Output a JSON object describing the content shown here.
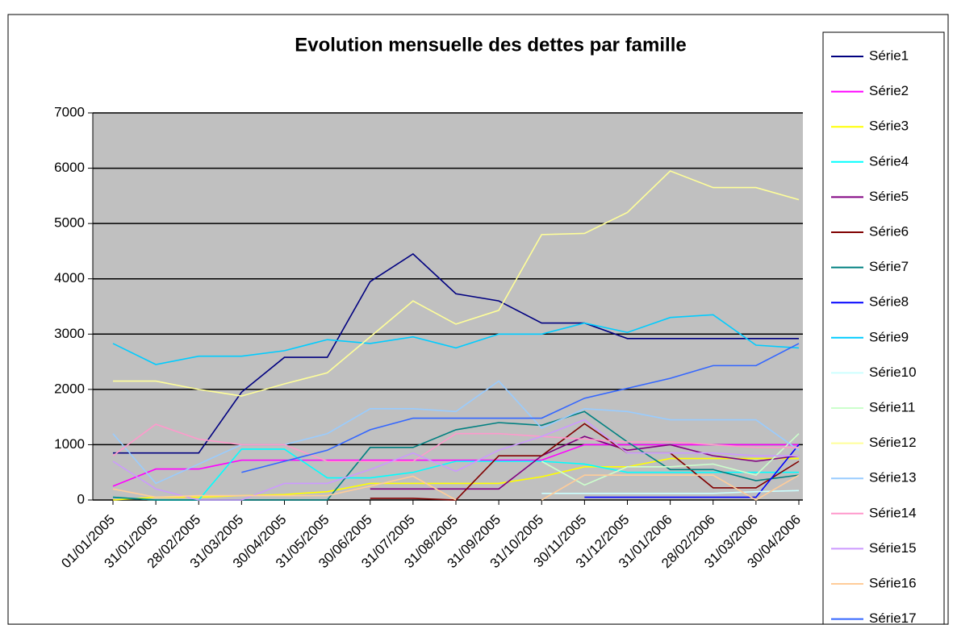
{
  "chart_data": {
    "type": "line",
    "title": "Evolution mensuelle des dettes par famille",
    "categories": [
      "01/01/2005",
      "31/01/2005",
      "28/02/2005",
      "31/03/2005",
      "30/04/2005",
      "31/05/2005",
      "30/06/2005",
      "31/07/2005",
      "31/08/2005",
      "31/09/2005",
      "31/10/2005",
      "30/11/2005",
      "31/12/2005",
      "31/01/2006",
      "28/02/2006",
      "31/03/2006",
      "30/04/2006"
    ],
    "ylim": [
      0,
      7000
    ],
    "yticks": [
      0,
      1000,
      2000,
      3000,
      4000,
      5000,
      6000,
      7000
    ],
    "grid": true,
    "legend": "right",
    "series": [
      {
        "name": "Série1",
        "color": "#000080",
        "values": [
          850,
          850,
          850,
          1950,
          2580,
          2580,
          3950,
          4450,
          3730,
          3600,
          3200,
          3200,
          2920,
          2920,
          2920,
          2920,
          2920
        ]
      },
      {
        "name": "Série2",
        "color": "#ff00ff",
        "values": [
          250,
          560,
          560,
          720,
          720,
          720,
          720,
          720,
          720,
          720,
          720,
          1000,
          1000,
          1000,
          1000,
          1000,
          1000
        ]
      },
      {
        "name": "Série3",
        "color": "#ffff00",
        "values": [
          0,
          50,
          50,
          80,
          100,
          150,
          300,
          300,
          300,
          300,
          420,
          600,
          600,
          750,
          750,
          750,
          750
        ]
      },
      {
        "name": "Série4",
        "color": "#00ffff",
        "values": [
          50,
          0,
          0,
          920,
          920,
          400,
          400,
          500,
          700,
          700,
          700,
          650,
          500,
          500,
          500,
          500,
          500
        ]
      },
      {
        "name": "Série5",
        "color": "#800080",
        "values": [
          null,
          null,
          null,
          null,
          null,
          null,
          200,
          200,
          200,
          200,
          800,
          1150,
          900,
          1000,
          800,
          700,
          800
        ]
      },
      {
        "name": "Série6",
        "color": "#800000",
        "values": [
          null,
          null,
          null,
          null,
          null,
          null,
          30,
          30,
          0,
          800,
          800,
          1380,
          850,
          850,
          220,
          220,
          700
        ]
      },
      {
        "name": "Série7",
        "color": "#008080",
        "values": [
          50,
          0,
          0,
          0,
          0,
          0,
          950,
          950,
          1270,
          1400,
          1350,
          1600,
          1050,
          550,
          550,
          350,
          450
        ]
      },
      {
        "name": "Série8",
        "color": "#0000ff",
        "values": [
          null,
          null,
          null,
          null,
          null,
          null,
          null,
          null,
          null,
          null,
          null,
          50,
          50,
          50,
          50,
          50,
          1000
        ]
      },
      {
        "name": "Série9",
        "color": "#00ccff",
        "values": [
          2830,
          2450,
          2600,
          2600,
          2700,
          2900,
          2830,
          2950,
          2750,
          3000,
          3000,
          3200,
          3030,
          3300,
          3350,
          2800,
          2750
        ]
      },
      {
        "name": "Série10",
        "color": "#ccffff",
        "values": [
          null,
          null,
          null,
          null,
          null,
          null,
          null,
          null,
          null,
          null,
          120,
          120,
          120,
          120,
          120,
          150,
          170
        ]
      },
      {
        "name": "Série11",
        "color": "#ccffcc",
        "values": [
          null,
          null,
          null,
          null,
          null,
          null,
          null,
          null,
          null,
          null,
          700,
          270,
          600,
          600,
          650,
          450,
          1200
        ]
      },
      {
        "name": "Série12",
        "color": "#ffff99",
        "values": [
          2150,
          2150,
          2000,
          1880,
          2100,
          2300,
          2950,
          3600,
          3180,
          3430,
          4800,
          4820,
          5200,
          5950,
          5650,
          5650,
          5430
        ]
      },
      {
        "name": "Série13",
        "color": "#99ccff",
        "values": [
          1200,
          300,
          650,
          1000,
          1000,
          1200,
          1650,
          1650,
          1600,
          2150,
          1300,
          1650,
          1600,
          1450,
          1450,
          1450,
          900
        ]
      },
      {
        "name": "Série14",
        "color": "#ff99cc",
        "values": [
          800,
          1370,
          1100,
          1000,
          1000,
          700,
          700,
          700,
          1200,
          1200,
          1150,
          1100,
          1050,
          1050,
          1000,
          950,
          950
        ]
      },
      {
        "name": "Série15",
        "color": "#cc99ff",
        "values": [
          700,
          200,
          0,
          0,
          300,
          300,
          550,
          850,
          520,
          900,
          1150,
          1450,
          850,
          850,
          850,
          800,
          800
        ]
      },
      {
        "name": "Série16",
        "color": "#ffcc99",
        "values": [
          200,
          50,
          80,
          80,
          80,
          80,
          250,
          430,
          0,
          null,
          0,
          450,
          450,
          450,
          450,
          0,
          450
        ]
      },
      {
        "name": "Série17",
        "color": "#3366ff",
        "values": [
          null,
          null,
          null,
          500,
          700,
          900,
          1270,
          1480,
          1480,
          1480,
          1480,
          1840,
          2020,
          2200,
          2430,
          2430,
          2830
        ]
      }
    ]
  }
}
